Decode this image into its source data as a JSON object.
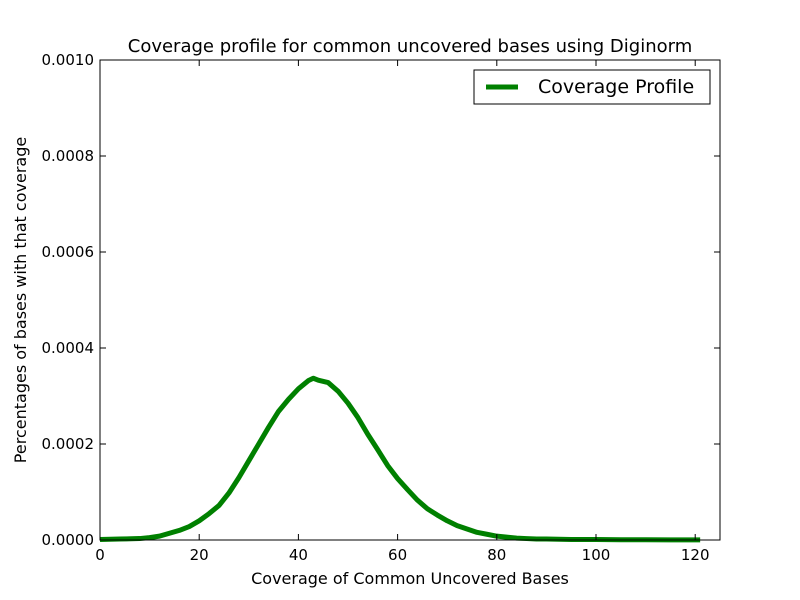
{
  "chart_data": {
    "type": "line",
    "title": "Coverage profile for common uncovered bases using Diginorm",
    "xlabel": "Coverage of Common Uncovered Bases",
    "ylabel": "Percentages of bases with that coverage",
    "xlim": [
      0,
      125
    ],
    "ylim": [
      0,
      0.001
    ],
    "xticks": [
      0,
      20,
      40,
      60,
      80,
      100,
      120
    ],
    "xtick_labels": [
      "0",
      "20",
      "40",
      "60",
      "80",
      "100",
      "120"
    ],
    "yticks": [
      0,
      0.0002,
      0.0004,
      0.0006,
      0.0008,
      0.001
    ],
    "ytick_labels": [
      "0.0000",
      "0.0002",
      "0.0004",
      "0.0006",
      "0.0008",
      "0.0010"
    ],
    "grid": false,
    "legend_position": "top-right",
    "series": [
      {
        "name": "Coverage Profile",
        "color": "#008000",
        "x": [
          0,
          4,
          8,
          10,
          12,
          14,
          16,
          18,
          20,
          22,
          24,
          26,
          28,
          30,
          32,
          34,
          36,
          38,
          40,
          42,
          43,
          44,
          46,
          48,
          50,
          52,
          54,
          56,
          58,
          60,
          62,
          64,
          66,
          68,
          70,
          72,
          74,
          76,
          78,
          80,
          82,
          84,
          86,
          88,
          90,
          95,
          100,
          105,
          110,
          115,
          121
        ],
        "values": [
          1e-06,
          2e-06,
          3e-06,
          5e-06,
          8e-06,
          1.4e-05,
          2e-05,
          2.8e-05,
          4e-05,
          5.5e-05,
          7.2e-05,
          9.8e-05,
          0.00013,
          0.000165,
          0.0002,
          0.000235,
          0.000268,
          0.000293,
          0.000315,
          0.000332,
          0.000337,
          0.000333,
          0.000328,
          0.00031,
          0.000285,
          0.000255,
          0.00022,
          0.000188,
          0.000155,
          0.000128,
          0.000105,
          8.3e-05,
          6.5e-05,
          5.2e-05,
          4e-05,
          3e-05,
          2.3e-05,
          1.6e-05,
          1.2e-05,
          8e-06,
          6e-06,
          4e-06,
          3e-06,
          2e-06,
          2e-06,
          1e-06,
          1e-06,
          5e-07,
          5e-07,
          3e-07,
          2e-07
        ]
      }
    ]
  }
}
